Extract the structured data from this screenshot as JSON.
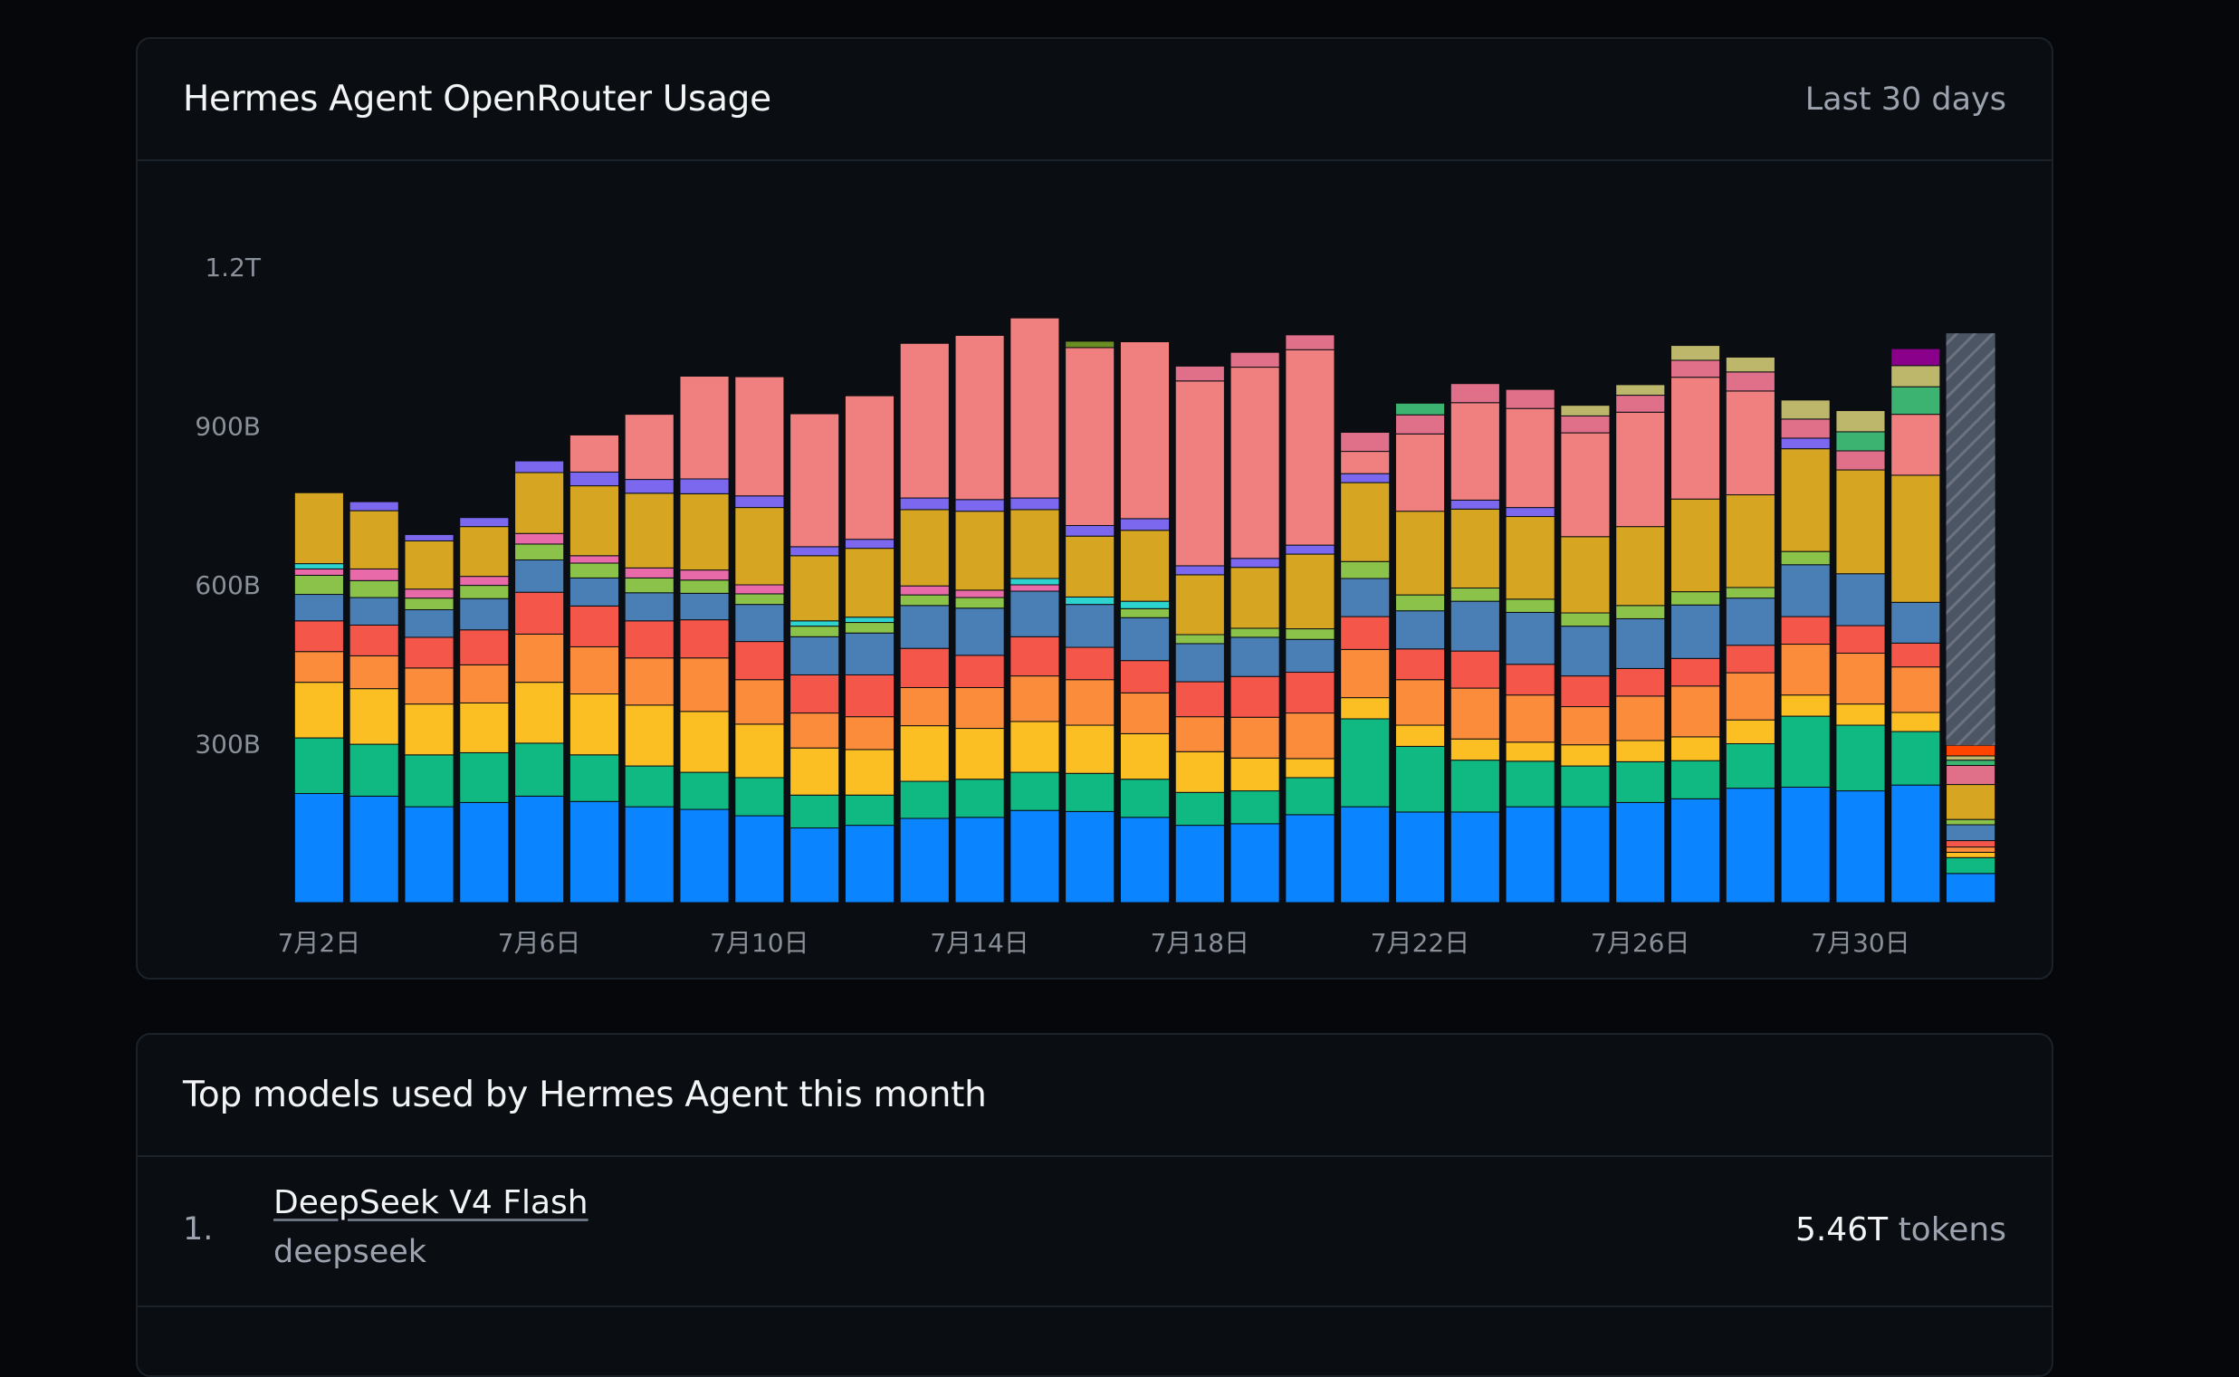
{
  "usage_card": {
    "title": "Hermes Agent OpenRouter Usage",
    "period": "Last 30 days"
  },
  "top_models": {
    "title": "Top models used by Hermes Agent this month",
    "items": [
      {
        "rank": "1.",
        "name": "DeepSeek V4 Flash",
        "provider": "deepseek",
        "tokens_value": "5.46T",
        "tokens_unit": "tokens"
      }
    ]
  },
  "chart_data": {
    "type": "bar",
    "stacked": true,
    "y_ticks": [
      "1.2T",
      "900B",
      "600B",
      "300B"
    ],
    "y_tick_values": [
      1200,
      900,
      600,
      300
    ],
    "ylim": [
      0,
      1200
    ],
    "y_unit": "B tokens",
    "x_ticks": [
      {
        "index": 0,
        "label": "7月2日"
      },
      {
        "index": 4,
        "label": "7月6日"
      },
      {
        "index": 8,
        "label": "7月10日"
      },
      {
        "index": 12,
        "label": "7月14日"
      },
      {
        "index": 16,
        "label": "7月18日"
      },
      {
        "index": 20,
        "label": "7月22日"
      },
      {
        "index": 24,
        "label": "7月26日"
      },
      {
        "index": 28,
        "label": "7月30日"
      }
    ],
    "series_colors": [
      "#0a84ff",
      "#10b981",
      "#fbbf24",
      "#fb8c3c",
      "#f4574a",
      "#4a7fb5",
      "#8bc34a",
      "#e86aa8",
      "#2dd4cf",
      "#d6a522",
      "#7b68ee",
      "#f08080",
      "#e0708a",
      "#3cb371",
      "#bdb76b",
      "#8b008b",
      "#6b8e23",
      "#ff4500"
    ],
    "last_bar_partial": true,
    "last_bar_projected_total": 1075,
    "bars": [
      [
        206,
        105,
        105,
        58,
        58,
        50,
        36,
        12,
        10,
        134,
        0,
        0,
        0,
        0,
        0,
        0,
        0,
        0
      ],
      [
        201,
        98,
        105,
        62,
        58,
        52,
        32,
        22,
        0,
        110,
        17,
        0,
        0,
        0,
        0,
        0,
        0,
        0
      ],
      [
        181,
        98,
        96,
        68,
        58,
        52,
        22,
        17,
        0,
        91,
        12,
        0,
        0,
        0,
        0,
        0,
        0,
        0
      ],
      [
        189,
        94,
        94,
        72,
        66,
        59,
        25,
        17,
        0,
        94,
        17,
        0,
        0,
        0,
        0,
        0,
        0,
        0
      ],
      [
        201,
        100,
        115,
        91,
        79,
        61,
        30,
        20,
        0,
        115,
        22,
        0,
        0,
        0,
        0,
        0,
        0,
        0
      ],
      [
        191,
        88,
        115,
        89,
        77,
        53,
        28,
        14,
        0,
        132,
        26,
        70,
        0,
        0,
        0,
        0,
        0,
        0
      ],
      [
        181,
        77,
        115,
        89,
        70,
        53,
        28,
        19,
        0,
        141,
        26,
        123,
        0,
        0,
        0,
        0,
        0,
        0
      ],
      [
        176,
        70,
        115,
        101,
        72,
        50,
        25,
        19,
        0,
        144,
        28,
        194,
        0,
        0,
        0,
        0,
        0,
        0
      ],
      [
        164,
        72,
        101,
        84,
        72,
        70,
        20,
        17,
        0,
        146,
        22,
        225,
        0,
        0,
        0,
        0,
        0,
        0
      ],
      [
        141,
        62,
        89,
        66,
        72,
        72,
        20,
        0,
        10,
        123,
        17,
        251,
        0,
        0,
        0,
        0,
        0,
        0
      ],
      [
        146,
        57,
        86,
        62,
        79,
        79,
        20,
        0,
        10,
        130,
        17,
        271,
        0,
        0,
        0,
        0,
        0,
        0
      ],
      [
        159,
        70,
        105,
        72,
        74,
        81,
        20,
        17,
        0,
        144,
        22,
        292,
        0,
        0,
        0,
        0,
        0,
        0
      ],
      [
        161,
        72,
        96,
        77,
        61,
        89,
        20,
        14,
        0,
        149,
        22,
        310,
        0,
        0,
        0,
        0,
        0,
        0
      ],
      [
        174,
        72,
        96,
        86,
        74,
        86,
        0,
        12,
        12,
        130,
        22,
        340,
        0,
        0,
        0,
        0,
        0,
        0
      ],
      [
        172,
        72,
        91,
        86,
        61,
        81,
        0,
        0,
        14,
        115,
        20,
        336,
        0,
        0,
        0,
        0,
        12,
        0
      ],
      [
        161,
        72,
        86,
        77,
        61,
        81,
        17,
        0,
        14,
        134,
        22,
        334,
        0,
        0,
        0,
        0,
        0,
        0
      ],
      [
        146,
        62,
        77,
        66,
        66,
        72,
        17,
        0,
        0,
        113,
        17,
        349,
        28,
        0,
        0,
        0,
        0,
        0
      ],
      [
        149,
        62,
        62,
        77,
        77,
        74,
        17,
        0,
        0,
        115,
        17,
        361,
        28,
        0,
        0,
        0,
        0,
        0
      ],
      [
        166,
        70,
        36,
        86,
        77,
        62,
        20,
        0,
        0,
        141,
        17,
        369,
        28,
        0,
        0,
        0,
        0,
        0
      ],
      [
        181,
        166,
        40,
        91,
        62,
        72,
        32,
        0,
        0,
        149,
        17,
        42,
        36,
        0,
        0,
        0,
        0,
        0
      ],
      [
        171,
        124,
        40,
        86,
        58,
        72,
        30,
        0,
        0,
        158,
        0,
        146,
        36,
        22,
        0,
        0,
        0,
        0
      ],
      [
        171,
        98,
        40,
        96,
        70,
        94,
        25,
        0,
        0,
        149,
        17,
        184,
        36,
        0,
        0,
        0,
        0,
        0
      ],
      [
        181,
        86,
        36,
        89,
        58,
        98,
        25,
        0,
        0,
        156,
        17,
        187,
        36,
        0,
        0,
        0,
        0,
        0
      ],
      [
        181,
        77,
        40,
        72,
        58,
        94,
        25,
        0,
        0,
        144,
        0,
        196,
        32,
        0,
        20,
        0,
        0,
        0
      ],
      [
        189,
        77,
        40,
        84,
        52,
        94,
        25,
        0,
        0,
        149,
        0,
        216,
        32,
        0,
        20,
        0,
        0,
        0
      ],
      [
        196,
        72,
        45,
        96,
        52,
        101,
        25,
        0,
        0,
        175,
        0,
        230,
        32,
        0,
        28,
        0,
        0,
        0
      ],
      [
        216,
        84,
        45,
        89,
        52,
        89,
        20,
        0,
        0,
        175,
        0,
        196,
        36,
        0,
        28,
        0,
        0,
        0
      ],
      [
        218,
        134,
        40,
        96,
        52,
        98,
        25,
        0,
        0,
        194,
        20,
        0,
        36,
        0,
        36,
        0,
        0,
        0
      ],
      [
        211,
        124,
        40,
        96,
        52,
        98,
        0,
        0,
        0,
        196,
        0,
        0,
        36,
        36,
        40,
        0,
        0,
        0
      ],
      [
        222,
        101,
        36,
        86,
        45,
        77,
        0,
        0,
        0,
        240,
        0,
        115,
        0,
        52,
        40,
        32,
        0,
        0
      ]
    ],
    "partial_bar": [
      55,
      30,
      10,
      10,
      12,
      30,
      10,
      0,
      0,
      66,
      0,
      0,
      36,
      10,
      8,
      0,
      0,
      20
    ]
  }
}
